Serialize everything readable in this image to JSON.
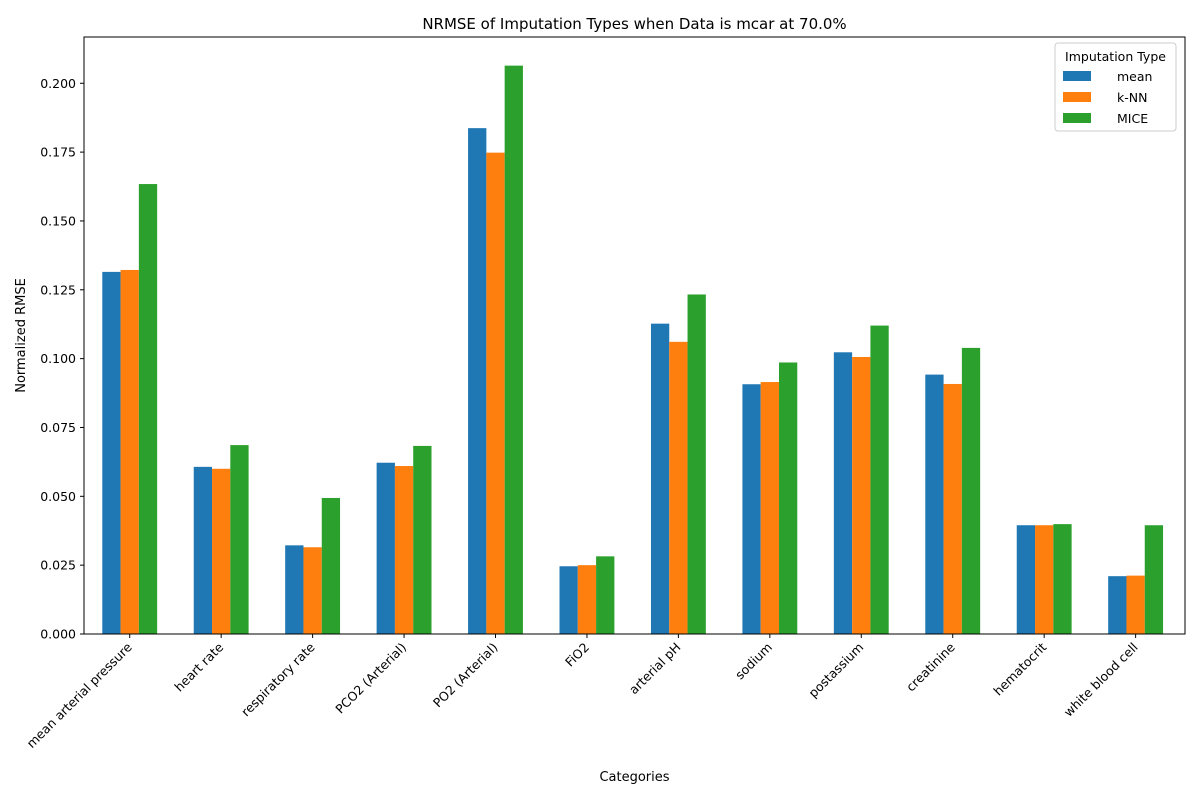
{
  "chart_data": {
    "type": "bar",
    "title": "NRMSE of Imputation Types when Data is mcar at 70.0%",
    "xlabel": "Categories",
    "ylabel": "Normalized RMSE",
    "ylim": [
      0,
      0.2168
    ],
    "yticks": [
      "0.000",
      "0.025",
      "0.050",
      "0.075",
      "0.100",
      "0.125",
      "0.150",
      "0.175",
      "0.200"
    ],
    "grid": false,
    "legend_position": "top-right",
    "legend_title": "Imputation Type",
    "categories": [
      "mean arterial pressure",
      "heart rate",
      "respiratory rate",
      "PCO2 (Arterial)",
      "PO2 (Arterial)",
      "FiO2",
      "arterial pH",
      "sodium",
      "postassium",
      "creatinine",
      "hematocrit",
      "white blood cell"
    ],
    "series": [
      {
        "name": "mean",
        "color": "#1f77b4",
        "values": [
          0.1315,
          0.0607,
          0.0322,
          0.0622,
          0.1837,
          0.0246,
          0.1127,
          0.0907,
          0.1023,
          0.0942,
          0.0395,
          0.021
        ]
      },
      {
        "name": "k-NN",
        "color": "#ff7f0e",
        "values": [
          0.1322,
          0.06,
          0.0315,
          0.061,
          0.1748,
          0.025,
          0.1061,
          0.0915,
          0.1006,
          0.0908,
          0.0395,
          0.0212
        ]
      },
      {
        "name": "MICE",
        "color": "#2ca02c",
        "values": [
          0.1634,
          0.0686,
          0.0494,
          0.0683,
          0.2064,
          0.0282,
          0.1233,
          0.0986,
          0.112,
          0.1039,
          0.0399,
          0.0395
        ]
      }
    ]
  }
}
